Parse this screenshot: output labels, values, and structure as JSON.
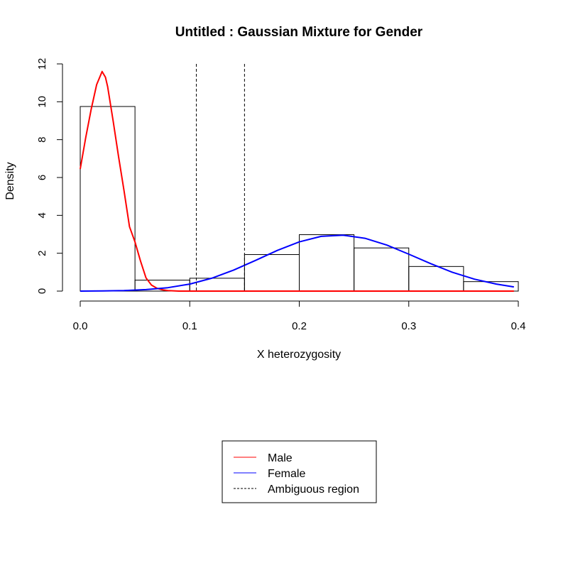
{
  "chart_data": {
    "type": "histogram",
    "title": "Untitled : Gaussian Mixture for Gender",
    "xlabel": "X heterozygosity",
    "ylabel": "Density",
    "xlim": [
      0,
      0.4
    ],
    "ylim": [
      0,
      12
    ],
    "x_ticks": [
      "0.0",
      "0.1",
      "0.2",
      "0.3",
      "0.4"
    ],
    "y_ticks": [
      "0",
      "2",
      "4",
      "6",
      "8",
      "10",
      "12"
    ],
    "histogram": {
      "bins": [
        {
          "x0": 0.0,
          "x1": 0.05,
          "density": 9.75
        },
        {
          "x0": 0.05,
          "x1": 0.1,
          "density": 0.58
        },
        {
          "x0": 0.1,
          "x1": 0.15,
          "density": 0.68
        },
        {
          "x0": 0.15,
          "x1": 0.2,
          "density": 1.93
        },
        {
          "x0": 0.2,
          "x1": 0.25,
          "density": 2.98
        },
        {
          "x0": 0.25,
          "x1": 0.3,
          "density": 2.28
        },
        {
          "x0": 0.3,
          "x1": 0.35,
          "density": 1.3
        },
        {
          "x0": 0.35,
          "x1": 0.4,
          "density": 0.5
        }
      ]
    },
    "series": [
      {
        "name": "Male",
        "color": "#ff0000",
        "style": "solid",
        "points": [
          [
            0.0,
            6.45
          ],
          [
            0.005,
            8.1
          ],
          [
            0.01,
            9.6
          ],
          [
            0.015,
            10.9
          ],
          [
            0.02,
            11.6
          ],
          [
            0.023,
            11.3
          ],
          [
            0.025,
            10.8
          ],
          [
            0.03,
            9.0
          ],
          [
            0.035,
            7.1
          ],
          [
            0.04,
            5.3
          ],
          [
            0.045,
            3.4
          ],
          [
            0.05,
            2.6
          ],
          [
            0.055,
            1.6
          ],
          [
            0.06,
            0.7
          ],
          [
            0.065,
            0.32
          ],
          [
            0.07,
            0.15
          ],
          [
            0.075,
            0.07
          ],
          [
            0.08,
            0.03
          ],
          [
            0.09,
            0.0
          ],
          [
            0.1,
            0.0
          ],
          [
            0.15,
            0.0
          ],
          [
            0.2,
            0.0
          ],
          [
            0.25,
            0.0
          ],
          [
            0.3,
            0.0
          ],
          [
            0.35,
            0.0
          ],
          [
            0.396,
            0.0
          ]
        ]
      },
      {
        "name": "Female",
        "color": "#0000ff",
        "style": "solid",
        "points": [
          [
            0.0,
            0.0
          ],
          [
            0.02,
            0.01
          ],
          [
            0.04,
            0.03
          ],
          [
            0.06,
            0.08
          ],
          [
            0.08,
            0.18
          ],
          [
            0.1,
            0.37
          ],
          [
            0.12,
            0.68
          ],
          [
            0.14,
            1.11
          ],
          [
            0.16,
            1.62
          ],
          [
            0.18,
            2.15
          ],
          [
            0.2,
            2.6
          ],
          [
            0.22,
            2.89
          ],
          [
            0.24,
            2.95
          ],
          [
            0.26,
            2.79
          ],
          [
            0.28,
            2.43
          ],
          [
            0.3,
            1.95
          ],
          [
            0.32,
            1.45
          ],
          [
            0.34,
            0.99
          ],
          [
            0.36,
            0.63
          ],
          [
            0.38,
            0.37
          ],
          [
            0.396,
            0.22
          ]
        ]
      },
      {
        "name": "Ambiguous region",
        "color": "#000000",
        "style": "dashed",
        "vlines": [
          0.106,
          0.15
        ]
      }
    ],
    "legend": {
      "position": "bottom-center",
      "entries": [
        {
          "label": "Male",
          "color": "#ff0000",
          "style": "solid"
        },
        {
          "label": "Female",
          "color": "#0000ff",
          "style": "solid"
        },
        {
          "label": "Ambiguous region",
          "color": "#000000",
          "style": "dashed"
        }
      ]
    }
  }
}
